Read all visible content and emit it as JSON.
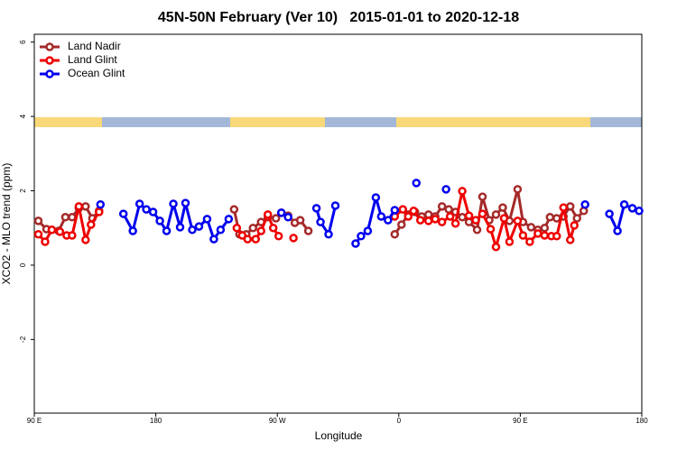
{
  "chart_data": {
    "type": "line",
    "title": "45N-50N February (Ver 10)   2015-01-01 to 2020-12-18",
    "x_label": "Longitude",
    "y_label": "XCO2 - MLO trend (ppm)",
    "xlim": [
      90,
      540
    ],
    "ylim": [
      -3.98,
      6.21
    ],
    "xticks": [
      {
        "value": 90,
        "label": "90 E"
      },
      180,
      {
        "value": 270,
        "label": "90 W"
      },
      {
        "value": 360,
        "label": "0"
      },
      {
        "value": 450,
        "label": "90 E"
      },
      {
        "value": 540,
        "label": "180"
      }
    ],
    "yticks": [
      -2,
      0,
      2,
      4,
      6
    ],
    "legend": "top-left",
    "series": [
      {
        "name": "Land Nadir",
        "color": "#a52a2a",
        "x": [
          93,
          99,
          103,
          108,
          113,
          118,
          123,
          128,
          133,
          138,
          null,
          238,
          242,
          247,
          252,
          258,
          263,
          269,
          273,
          278,
          283,
          287,
          293,
          null,
          357,
          362,
          367,
          372,
          377,
          382,
          387,
          392,
          397,
          402,
          407,
          412,
          418,
          422,
          427,
          432,
          437,
          442,
          448,
          452,
          458,
          463,
          468,
          472,
          477,
          482,
          487,
          492,
          497
        ],
        "values": [
          1.19,
          0.97,
          0.95,
          0.92,
          1.29,
          1.29,
          1.53,
          1.58,
          1.26,
          1.46,
          null,
          1.5,
          0.83,
          0.83,
          1.0,
          1.16,
          1.29,
          1.26,
          1.41,
          1.33,
          1.14,
          1.21,
          0.92,
          null,
          0.83,
          1.09,
          1.36,
          1.43,
          1.31,
          1.36,
          1.31,
          1.58,
          1.5,
          1.43,
          1.29,
          1.16,
          0.95,
          1.84,
          1.21,
          1.36,
          1.55,
          1.19,
          2.04,
          1.16,
          1.02,
          0.95,
          1.0,
          1.29,
          1.26,
          1.31,
          1.58,
          1.26,
          1.46
        ]
      },
      {
        "name": "Land Glint",
        "color": "#ee0000",
        "x": [
          93,
          98,
          103,
          109,
          114,
          118,
          123,
          128,
          132,
          138,
          null,
          240,
          244,
          248,
          254,
          258,
          263,
          267,
          271,
          null,
          282,
          null,
          357,
          363,
          367,
          371,
          376,
          382,
          387,
          392,
          398,
          402,
          407,
          412,
          417,
          422,
          428,
          432,
          438,
          442,
          448,
          452,
          457,
          463,
          468,
          473,
          477,
          482,
          487,
          490
        ],
        "values": [
          0.83,
          0.63,
          0.95,
          0.9,
          0.8,
          0.8,
          1.58,
          0.68,
          1.09,
          1.43,
          null,
          1.0,
          0.8,
          0.7,
          0.7,
          0.92,
          1.36,
          1.0,
          0.78,
          null,
          0.73,
          null,
          1.31,
          1.5,
          1.31,
          1.46,
          1.21,
          1.19,
          1.24,
          1.16,
          1.31,
          1.12,
          1.99,
          1.33,
          1.21,
          1.38,
          0.97,
          0.49,
          1.26,
          0.63,
          1.19,
          0.8,
          0.63,
          0.85,
          0.8,
          0.78,
          0.78,
          1.55,
          0.68,
          1.07
        ]
      },
      {
        "name": "Ocean Glint",
        "color": "#0000ee",
        "x": [
          139,
          null,
          156,
          163,
          168,
          173,
          178,
          183,
          188,
          193,
          198,
          202,
          207,
          212,
          218,
          223,
          228,
          234,
          null,
          273,
          278,
          null,
          299,
          302,
          308,
          313,
          null,
          328,
          332,
          337,
          343,
          347,
          352,
          357,
          null,
          373,
          null,
          395,
          null,
          498,
          null,
          516,
          522,
          527,
          533,
          538
        ],
        "values": [
          1.63,
          null,
          1.38,
          0.92,
          1.65,
          1.5,
          1.43,
          1.19,
          0.92,
          1.65,
          1.02,
          1.67,
          0.95,
          1.04,
          1.24,
          0.7,
          0.95,
          1.24,
          null,
          1.41,
          1.29,
          null,
          1.53,
          1.16,
          0.83,
          1.6,
          null,
          0.58,
          0.78,
          0.92,
          1.82,
          1.31,
          1.21,
          1.48,
          null,
          2.21,
          null,
          2.04,
          null,
          1.63,
          null,
          1.38,
          0.92,
          1.63,
          1.53,
          1.46
        ]
      }
    ]
  }
}
